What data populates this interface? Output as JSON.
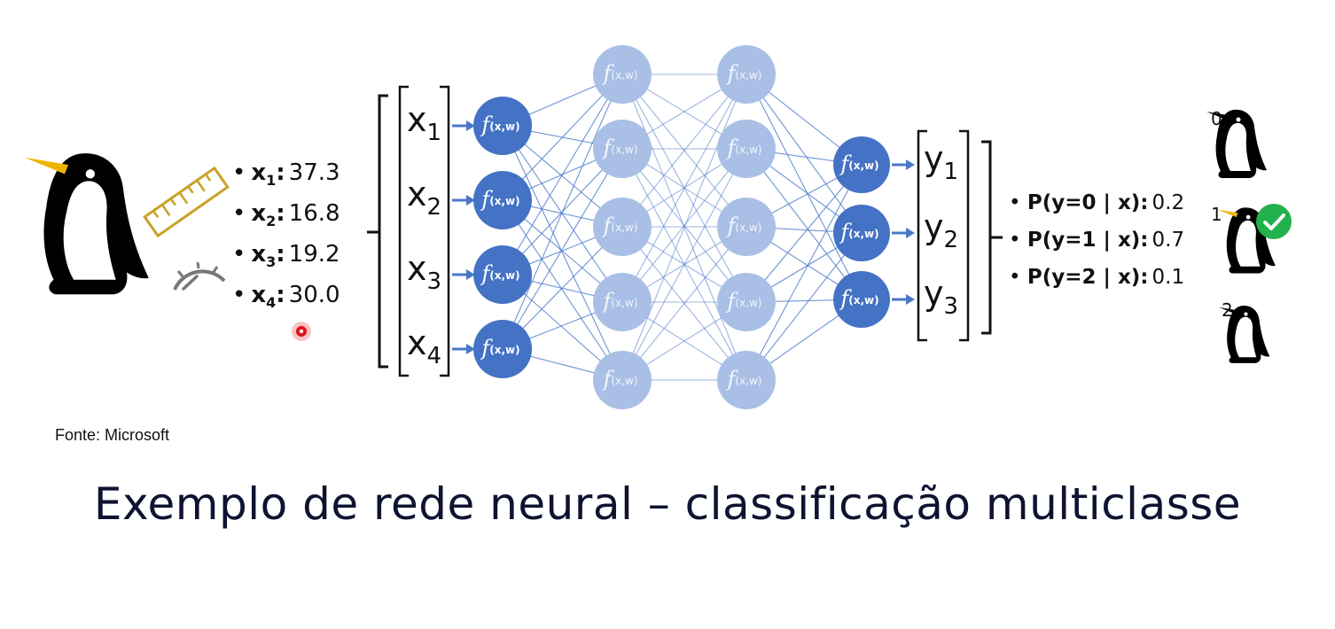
{
  "features": [
    {
      "name": "x",
      "index": "1",
      "value": "37.3"
    },
    {
      "name": "x",
      "index": "2",
      "value": "16.8"
    },
    {
      "name": "x",
      "index": "3",
      "value": "19.2"
    },
    {
      "name": "x",
      "index": "4",
      "value": "30.0"
    }
  ],
  "inputs": [
    {
      "name": "x",
      "index": "1"
    },
    {
      "name": "x",
      "index": "2"
    },
    {
      "name": "x",
      "index": "3"
    },
    {
      "name": "x",
      "index": "4"
    }
  ],
  "outputs": [
    {
      "name": "y",
      "index": "1"
    },
    {
      "name": "y",
      "index": "2"
    },
    {
      "name": "y",
      "index": "3"
    }
  ],
  "neuron_label": {
    "f": "f",
    "args": "(x,w)"
  },
  "layer_sizes": [
    4,
    5,
    5,
    3
  ],
  "probabilities": [
    {
      "label": "P(y=0 | x):",
      "value": "0.2"
    },
    {
      "label": "P(y=1 | x):",
      "value": "0.7"
    },
    {
      "label": "P(y=2 | x):",
      "value": "0.1"
    }
  ],
  "classes": [
    "0",
    "1",
    "2"
  ],
  "source": "Fonte: Microsoft",
  "title": "Exemplo de rede neural – classificação multiclasse",
  "colors": {
    "neuron_dark": "#4472c4",
    "neuron_light": "#a9bfe6",
    "edge": "#4a78c8",
    "beak": "#f0b400",
    "ruler": "#c9a227",
    "gauge": "#777777",
    "check": "#22b14c",
    "laser": "#e0101a"
  }
}
